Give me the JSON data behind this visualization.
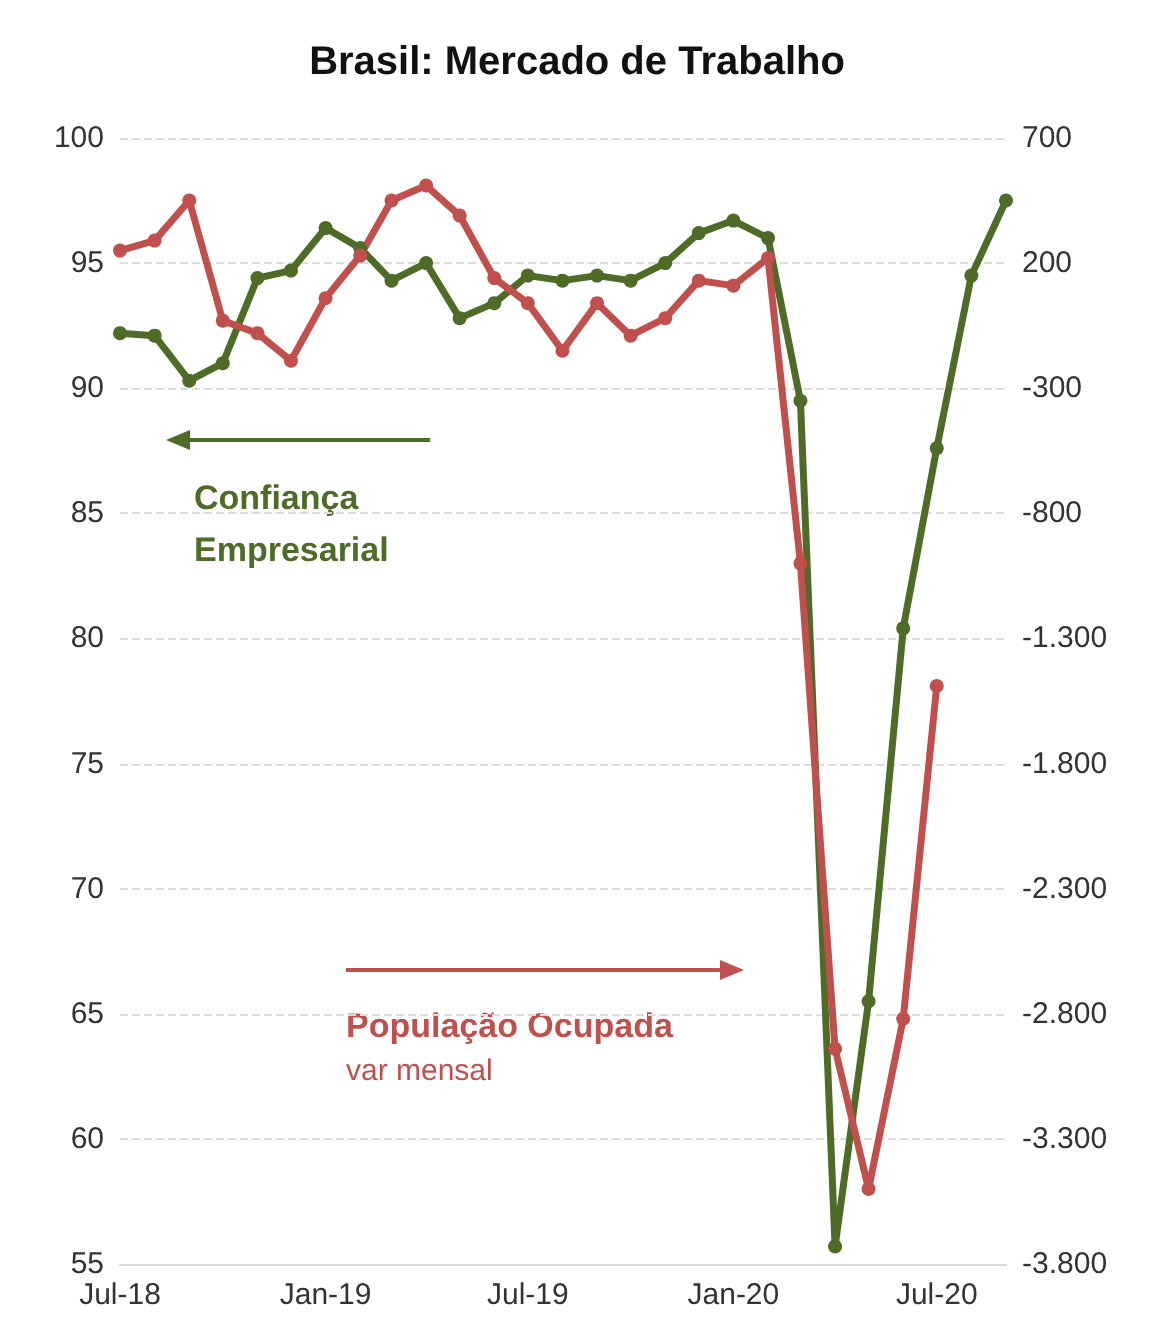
{
  "chart_data": {
    "type": "line",
    "title": "Brasil: Mercado de Trabalho",
    "x": [
      "2018-07",
      "2018-08",
      "2018-09",
      "2018-10",
      "2018-11",
      "2018-12",
      "2019-01",
      "2019-02",
      "2019-03",
      "2019-04",
      "2019-05",
      "2019-06",
      "2019-07",
      "2019-08",
      "2019-09",
      "2019-10",
      "2019-11",
      "2019-12",
      "2020-01",
      "2020-02",
      "2020-03",
      "2020-04",
      "2020-05",
      "2020-06",
      "2020-07",
      "2020-08",
      "2020-09"
    ],
    "series": [
      {
        "name": "Confiança Empresarial",
        "color": "#4e6b28",
        "values": [
          92.2,
          92.1,
          90.3,
          91.0,
          94.4,
          94.7,
          96.4,
          95.6,
          94.3,
          95.0,
          92.8,
          93.4,
          94.5,
          94.3,
          94.5,
          94.3,
          95.0,
          96.2,
          96.7,
          96.0,
          89.5,
          55.7,
          65.5,
          80.4,
          87.6,
          94.5,
          97.5
        ]
      },
      {
        "name": "População Ocupada",
        "color": "#c0504d",
        "axis": "y2",
        "values": [
          250,
          290,
          450,
          -30,
          -80,
          -190,
          60,
          230,
          450,
          510,
          390,
          140,
          40,
          -150,
          40,
          -90,
          -20,
          130,
          110,
          220,
          -1000,
          -2940,
          -3500,
          -2820,
          -1490,
          null,
          null
        ]
      }
    ],
    "xlim": [
      "2018-07",
      "2020-09"
    ],
    "xticks": [
      {
        "value": "2018-07",
        "label": "Jul-18"
      },
      {
        "value": "2019-01",
        "label": "Jan-19"
      },
      {
        "value": "2019-07",
        "label": "Jul-19"
      },
      {
        "value": "2020-01",
        "label": "Jan-20"
      },
      {
        "value": "2020-07",
        "label": "Jul-20"
      }
    ],
    "ylim": [
      55,
      100
    ],
    "yticks": [
      55,
      60,
      65,
      70,
      75,
      80,
      85,
      90,
      95,
      100
    ],
    "y2lim": [
      -3800,
      700
    ],
    "y2ticks": [
      {
        "value": -3800,
        "label": "-3.800"
      },
      {
        "value": -3300,
        "label": "-3.300"
      },
      {
        "value": -2800,
        "label": "-2.800"
      },
      {
        "value": -2300,
        "label": "-2.300"
      },
      {
        "value": -1800,
        "label": "-1.800"
      },
      {
        "value": -1300,
        "label": "-1.300"
      },
      -800,
      -300,
      200,
      700
    ],
    "annotations": [
      "var mensal"
    ],
    "grid": "y",
    "legend": "left",
    "marker": "circle",
    "line_style": "solid"
  }
}
